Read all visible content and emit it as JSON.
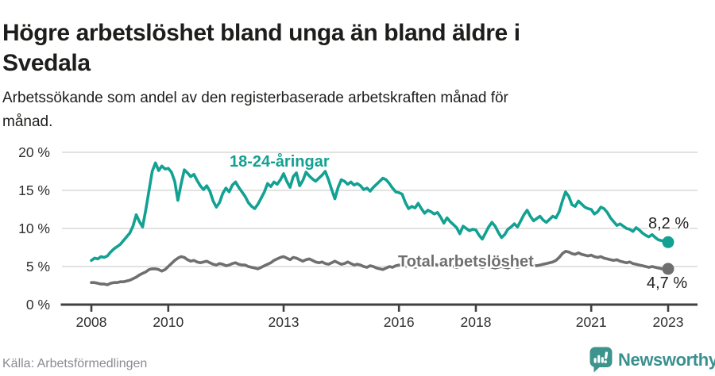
{
  "header": {
    "title_lines": [
      "Högre arbetslöshet bland unga än bland äldre i",
      "Svedala"
    ],
    "subtitle_lines": [
      "Arbetssökande som andel av den registerbaserade arbetskraften månad för",
      "månad."
    ]
  },
  "chart_data": {
    "type": "line",
    "title": "Högre arbetslöshet bland unga än bland äldre i Svedala",
    "subtitle": "Arbetssökande som andel av den registerbaserade arbetskraften månad för månad.",
    "x_unit": "month",
    "x_start_year": 2008,
    "x_end_year": 2023,
    "ylim": [
      0,
      20
    ],
    "grid": true,
    "legend_position": "inline",
    "colors": {
      "grid": "#d9d9d9",
      "axis": "#404040",
      "tick_text": "#2e2e2e"
    },
    "y_ticks": [
      {
        "value": 0,
        "label": "0 %"
      },
      {
        "value": 5,
        "label": "5 %"
      },
      {
        "value": 10,
        "label": "10 %"
      },
      {
        "value": 15,
        "label": "15 %"
      },
      {
        "value": 20,
        "label": "20 %"
      }
    ],
    "x_ticks": [
      {
        "year": 2008,
        "label": "2008"
      },
      {
        "year": 2010,
        "label": "2010"
      },
      {
        "year": 2013,
        "label": "2013"
      },
      {
        "year": 2016,
        "label": "2016"
      },
      {
        "year": 2018,
        "label": "2018"
      },
      {
        "year": 2021,
        "label": "2021"
      },
      {
        "year": 2023,
        "label": "2023"
      }
    ],
    "series": [
      {
        "name": "18-24-aringar",
        "label": "18-24-åringar",
        "color": "#12a192",
        "end_label": "8,2 %",
        "end_value": 8.2,
        "values": [
          5.8,
          6.1,
          6.0,
          6.3,
          6.2,
          6.4,
          6.9,
          7.3,
          7.6,
          7.9,
          8.4,
          8.9,
          9.4,
          10.3,
          11.8,
          10.9,
          10.2,
          12.5,
          15.0,
          17.5,
          18.6,
          17.6,
          18.2,
          17.8,
          17.9,
          17.4,
          16.2,
          13.7,
          15.8,
          17.7,
          17.3,
          16.8,
          17.1,
          16.3,
          15.6,
          15.1,
          15.6,
          14.9,
          13.6,
          12.8,
          13.4,
          14.6,
          15.3,
          14.8,
          15.7,
          16.1,
          15.4,
          14.8,
          14.2,
          13.4,
          12.9,
          12.6,
          13.2,
          14.0,
          14.8,
          15.9,
          15.5,
          16.1,
          15.8,
          16.4,
          17.2,
          16.2,
          15.4,
          16.8,
          17.3,
          15.6,
          16.3,
          17.4,
          16.9,
          16.5,
          16.2,
          16.6,
          17.0,
          17.5,
          16.4,
          15.1,
          13.9,
          15.4,
          16.4,
          16.2,
          15.8,
          16.1,
          15.7,
          15.9,
          15.6,
          15.1,
          15.3,
          14.9,
          15.4,
          15.8,
          16.2,
          16.6,
          16.4,
          15.9,
          15.3,
          14.8,
          14.7,
          14.5,
          13.4,
          12.6,
          12.9,
          12.7,
          13.3,
          12.6,
          12.0,
          12.4,
          12.2,
          11.9,
          12.1,
          11.5,
          10.7,
          11.4,
          10.9,
          10.5,
          10.1,
          9.3,
          10.3,
          10.0,
          9.7,
          9.9,
          9.8,
          9.1,
          8.6,
          9.4,
          10.2,
          10.8,
          10.3,
          9.5,
          8.8,
          9.2,
          9.9,
          10.2,
          10.6,
          10.2,
          11.0,
          11.8,
          12.4,
          11.6,
          11.0,
          11.3,
          11.6,
          11.1,
          10.8,
          11.2,
          11.6,
          11.4,
          12.2,
          13.6,
          14.8,
          14.2,
          13.1,
          12.9,
          13.6,
          13.2,
          12.8,
          12.6,
          12.5,
          11.9,
          12.2,
          12.8,
          12.6,
          12.1,
          11.4,
          10.9,
          10.4,
          10.6,
          10.3,
          10.0,
          9.9,
          9.6,
          10.1,
          9.8,
          9.4,
          9.1,
          8.9,
          9.2,
          8.8,
          8.5,
          8.4,
          8.3,
          8.2
        ]
      },
      {
        "name": "total-arbetsloshet",
        "label": "Total arbetslöshet",
        "color": "#6f6f6f",
        "end_label": "4,7 %",
        "end_value": 4.7,
        "values": [
          2.9,
          2.9,
          2.8,
          2.7,
          2.7,
          2.6,
          2.8,
          2.9,
          2.9,
          3.0,
          3.0,
          3.1,
          3.2,
          3.4,
          3.6,
          3.9,
          4.1,
          4.3,
          4.6,
          4.7,
          4.7,
          4.6,
          4.4,
          4.6,
          5.0,
          5.4,
          5.8,
          6.1,
          6.3,
          6.2,
          5.9,
          5.7,
          5.8,
          5.6,
          5.5,
          5.6,
          5.7,
          5.5,
          5.3,
          5.2,
          5.4,
          5.3,
          5.1,
          5.2,
          5.4,
          5.5,
          5.3,
          5.2,
          5.2,
          5.0,
          4.9,
          4.8,
          4.7,
          4.9,
          5.1,
          5.3,
          5.5,
          5.8,
          6.0,
          6.2,
          6.3,
          6.1,
          5.9,
          6.2,
          6.1,
          5.9,
          5.7,
          5.9,
          6.0,
          5.8,
          5.6,
          5.5,
          5.6,
          5.4,
          5.3,
          5.5,
          5.7,
          5.5,
          5.3,
          5.4,
          5.6,
          5.4,
          5.2,
          5.3,
          5.2,
          5.0,
          4.9,
          5.1,
          5.0,
          4.8,
          4.7,
          4.6,
          4.8,
          5.0,
          4.9,
          5.1,
          5.2,
          5.1,
          5.0,
          5.2,
          5.1,
          4.9,
          5.0,
          5.2,
          5.1,
          5.0,
          5.2,
          5.3,
          5.2,
          5.1,
          5.0,
          5.1,
          5.2,
          5.0,
          4.9,
          5.0,
          5.2,
          5.1,
          5.0,
          5.2,
          5.1,
          5.0,
          4.9,
          5.0,
          5.1,
          4.9,
          4.8,
          4.9,
          5.0,
          4.9,
          4.8,
          5.0,
          5.0,
          4.9,
          5.0,
          5.1,
          5.0,
          5.1,
          5.2,
          5.1,
          5.2,
          5.3,
          5.4,
          5.5,
          5.6,
          5.8,
          6.2,
          6.7,
          7.0,
          6.9,
          6.7,
          6.6,
          6.8,
          6.6,
          6.5,
          6.4,
          6.5,
          6.3,
          6.2,
          6.3,
          6.1,
          6.0,
          5.9,
          5.8,
          5.9,
          5.7,
          5.6,
          5.5,
          5.6,
          5.4,
          5.3,
          5.2,
          5.1,
          5.0,
          4.9,
          5.0,
          4.9,
          4.8,
          4.7,
          4.7,
          4.7
        ]
      }
    ]
  },
  "footer": {
    "source": "Källa: Arbetsförmedlingen",
    "brand": "Newsworthy",
    "brand_color": "#3a9190",
    "brand_icon": "newsworthy-speech-bubble-bar-chart"
  }
}
